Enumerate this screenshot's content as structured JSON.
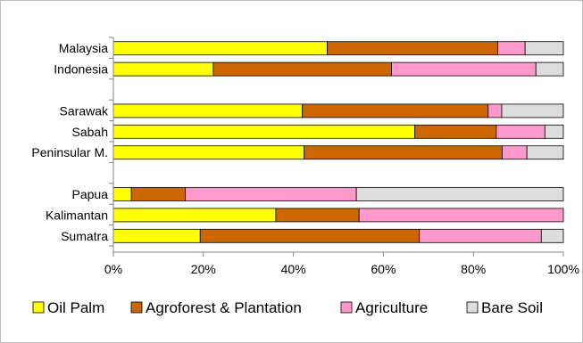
{
  "chart_data": {
    "type": "bar",
    "orientation": "horizontal",
    "stacked": "percent",
    "categories": [
      "Malaysia",
      "Indonesia",
      "",
      "Sarawak",
      "Sabah",
      "Peninsular M.",
      "",
      "Papua",
      "Kalimantan",
      "Sumatra"
    ],
    "series": [
      {
        "name": "Oil Palm",
        "color": "#FFFF00",
        "values": [
          47.5,
          22.2,
          null,
          42.0,
          67.0,
          42.4,
          null,
          4.0,
          36.1,
          19.3
        ]
      },
      {
        "name": "Agroforest & Plantation",
        "color": "#CC6600",
        "values": [
          37.9,
          39.6,
          null,
          41.3,
          18.1,
          44.0,
          null,
          12.0,
          18.5,
          48.7
        ]
      },
      {
        "name": "Agriculture",
        "color": "#FF99CC",
        "values": [
          6.1,
          32.1,
          null,
          3.0,
          10.8,
          5.5,
          null,
          38.0,
          45.4,
          27.1
        ]
      },
      {
        "name": "Bare Soil",
        "color": "#DDDDDD",
        "values": [
          8.5,
          6.1,
          null,
          13.7,
          4.1,
          8.1,
          null,
          46.0,
          0.0,
          4.9
        ]
      }
    ],
    "xlim": [
      0,
      100
    ],
    "xticks": [
      "0%",
      "20%",
      "40%",
      "60%",
      "80%",
      "100%"
    ],
    "grid": false,
    "legend": "bottom",
    "title": "",
    "xlabel": "",
    "ylabel": ""
  }
}
